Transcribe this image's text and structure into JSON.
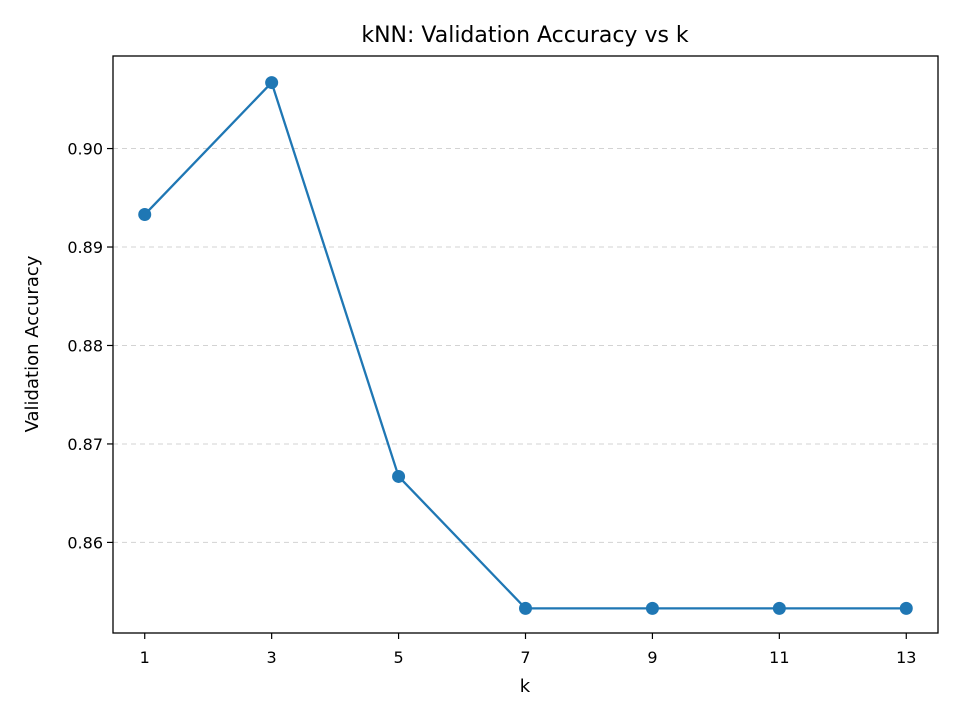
{
  "chart_data": {
    "type": "line",
    "title": "kNN: Validation Accuracy vs k",
    "xlabel": "k",
    "ylabel": "Validation Accuracy",
    "x": [
      1,
      3,
      5,
      7,
      9,
      11,
      13
    ],
    "xticks": [
      "1",
      "3",
      "5",
      "7",
      "9",
      "11",
      "13"
    ],
    "xlim": [
      0.5,
      13.5
    ],
    "yticks": [
      "0.86",
      "0.87",
      "0.88",
      "0.89",
      "0.90"
    ],
    "ylim": [
      0.8508,
      0.9094
    ],
    "grid": "y-dashed",
    "series": [
      {
        "values": [
          0.8933,
          0.9067,
          0.8667,
          0.8533,
          0.8533,
          0.8533,
          0.8533
        ],
        "color": "#1f77b4",
        "marker": "circle"
      }
    ]
  }
}
